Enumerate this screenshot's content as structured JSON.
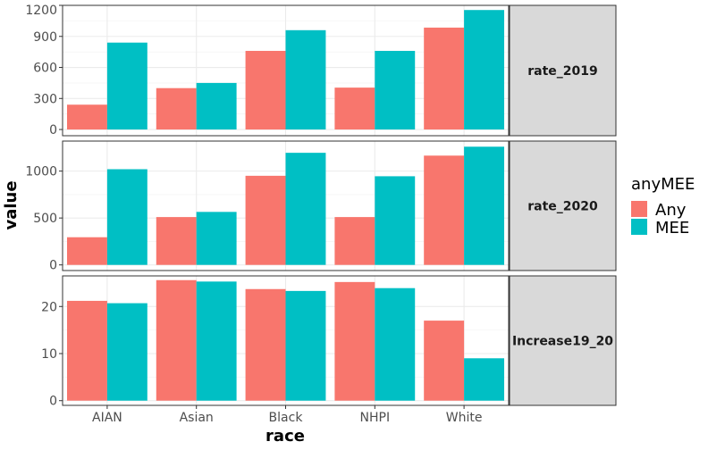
{
  "chart_data": {
    "type": "bar",
    "xlabel": "race",
    "ylabel": "value",
    "categories": [
      "AIAN",
      "Asian",
      "Black",
      "NHPI",
      "White"
    ],
    "legend": {
      "title": "anyMEE",
      "position": "right",
      "entries": [
        {
          "name": "Any",
          "color": "#F8766D"
        },
        {
          "name": "MEE",
          "color": "#00BFC4"
        }
      ]
    },
    "grid": true,
    "facets": [
      {
        "label": "rate_2019",
        "ylim": [
          -60,
          1200
        ],
        "yticks": [
          0,
          300,
          600,
          900,
          1200
        ],
        "series": [
          {
            "name": "Any",
            "values": [
              240,
              400,
              760,
              405,
              985
            ]
          },
          {
            "name": "MEE",
            "values": [
              840,
              450,
              960,
              760,
              1155
            ]
          }
        ]
      },
      {
        "label": "rate_2020",
        "ylim": [
          -60,
          1320
        ],
        "yticks": [
          0,
          500,
          1000
        ],
        "series": [
          {
            "name": "Any",
            "values": [
              295,
              510,
              950,
              510,
              1165
            ]
          },
          {
            "name": "MEE",
            "values": [
              1020,
              565,
              1195,
              945,
              1260
            ]
          }
        ]
      },
      {
        "label": "Increase19_20",
        "ylim": [
          -1,
          26.5
        ],
        "yticks": [
          0,
          10,
          20
        ],
        "series": [
          {
            "name": "Any",
            "values": [
              21.2,
              25.6,
              23.7,
              25.2,
              17.0
            ]
          },
          {
            "name": "MEE",
            "values": [
              20.7,
              25.3,
              23.3,
              23.9,
              9.0
            ]
          }
        ]
      }
    ]
  }
}
